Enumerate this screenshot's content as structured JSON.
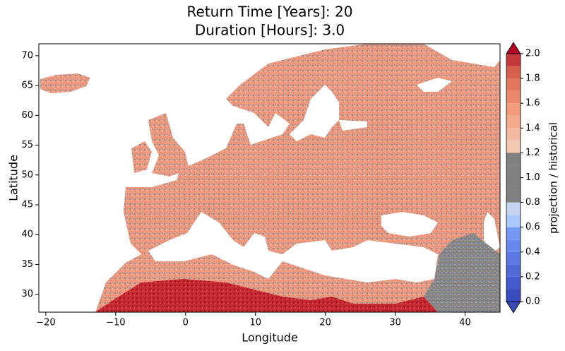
{
  "chart_data": {
    "type": "map",
    "title": [
      "Return Time [Years]: 20",
      "Duration [Hours]: 3.0"
    ],
    "x_label": "Longitude",
    "y_label": "Latitude",
    "xlim": [
      -21,
      45
    ],
    "ylim": [
      27,
      72
    ],
    "xticks": [
      {
        "value": -20,
        "label": "−20"
      },
      {
        "value": -10,
        "label": "−10"
      },
      0,
      10,
      20,
      30,
      40
    ],
    "yticks": [
      30,
      35,
      40,
      45,
      50,
      55,
      60,
      65,
      70
    ],
    "colorbar": {
      "label": "projection / historical",
      "levels": [
        0,
        0.1,
        0.2,
        0.3,
        0.4,
        0.5,
        0.6,
        0.7,
        0.8,
        0.9,
        1.0,
        1.1,
        1.2,
        1.3,
        1.4,
        1.5,
        1.6,
        1.7,
        1.8,
        1.9,
        2.0
      ],
      "colors": [
        "#3b4cc0",
        "#455bcd",
        "#5069d9",
        "#5b78e4",
        "#6888ee",
        "#7597f6",
        "#aac8fc",
        "#c4d6f3",
        "#808080",
        "#808080",
        "#808080",
        "#808080",
        "#f3c8b2",
        "#f5b8a0",
        "#f5a98b",
        "#f19b7b",
        "#ea8a6a",
        "#e2785b",
        "#d6604c",
        "#c4383a"
      ],
      "extend_colors": [
        "#3a4bb8",
        "#b40426"
      ],
      "ticks": [
        {
          "value": 0,
          "label": "0.0"
        },
        0.2,
        0.4,
        0.6,
        0.8,
        {
          "value": 1.0,
          "label": "1.0"
        },
        1.2,
        1.4,
        1.6,
        1.8,
        {
          "value": 2.0,
          "label": "2.0"
        }
      ]
    }
  }
}
